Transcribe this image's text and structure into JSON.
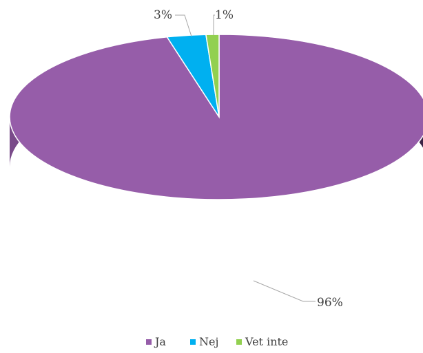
{
  "chart_data": {
    "type": "pie",
    "style": "3d",
    "categories": [
      "Ja",
      "Nej",
      "Vet inte"
    ],
    "values": [
      96,
      3,
      1
    ],
    "data_labels": [
      "96%",
      "3%",
      "1%"
    ],
    "colors": [
      "#965DA9",
      "#00B0F0",
      "#92D050"
    ],
    "legend": "bottom",
    "title": ""
  }
}
